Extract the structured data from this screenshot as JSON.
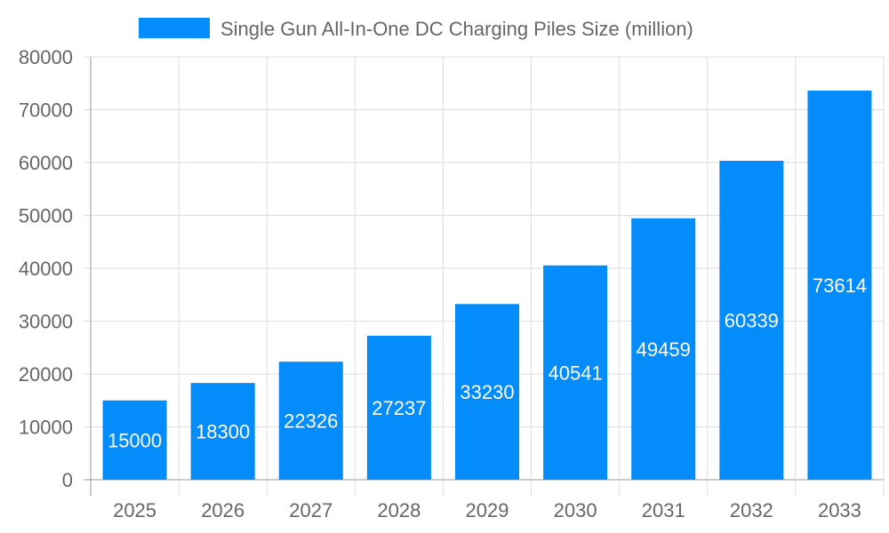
{
  "chart_data": {
    "type": "bar",
    "title": "",
    "xlabel": "",
    "ylabel": "",
    "categories": [
      "2025",
      "2026",
      "2027",
      "2028",
      "2029",
      "2030",
      "2031",
      "2032",
      "2033"
    ],
    "series": [
      {
        "name": "Single Gun All-In-One DC Charging Piles Size (million)",
        "values": [
          15000,
          18300,
          22326,
          27237,
          33230,
          40541,
          49459,
          60339,
          73614
        ],
        "color": "#038cfa"
      }
    ],
    "ylim": [
      0,
      80000
    ],
    "yticks": [
      0,
      10000,
      20000,
      30000,
      40000,
      50000,
      60000,
      70000,
      80000
    ],
    "grid": true,
    "legend": "top",
    "data_labels": true
  }
}
